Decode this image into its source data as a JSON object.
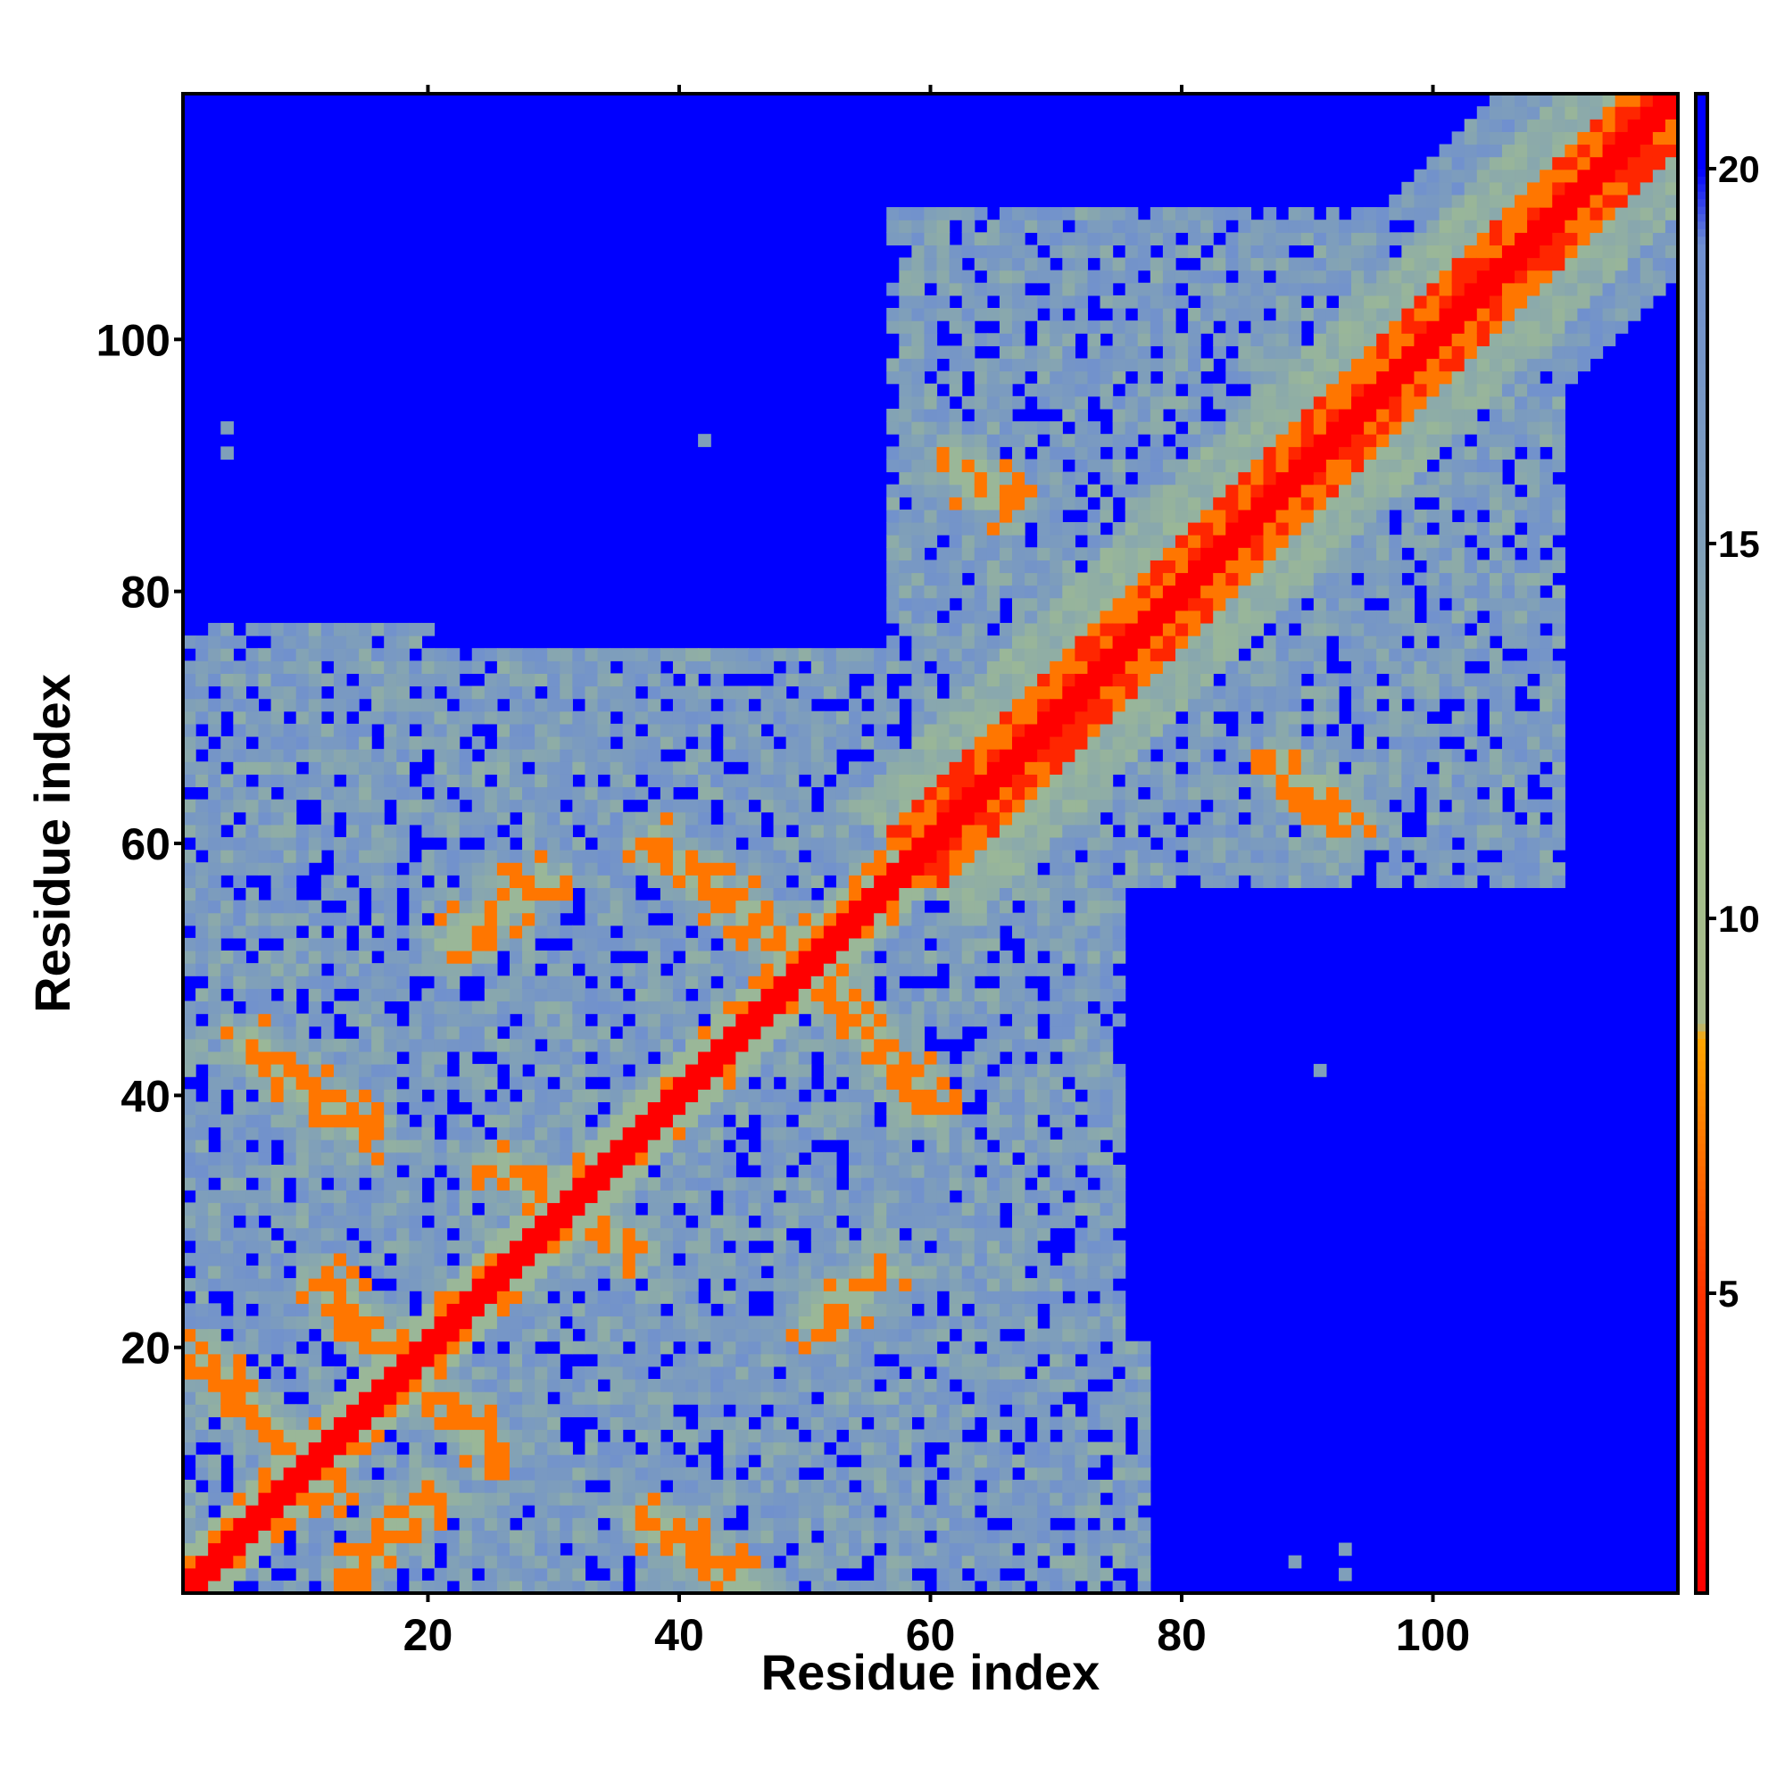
{
  "chart_data": {
    "type": "heatmap",
    "title": "",
    "xlabel": "Residue index",
    "ylabel": "Residue index",
    "n_residues": 119,
    "xlim": [
      0.5,
      119.5
    ],
    "ylim": [
      0.5,
      119.5
    ],
    "x_ticks": [
      20,
      40,
      60,
      80,
      100
    ],
    "y_ticks": [
      20,
      40,
      60,
      80,
      100
    ],
    "x_tick_labels": [
      "20",
      "40",
      "60",
      "80",
      "100"
    ],
    "y_tick_labels": [
      "20",
      "40",
      "60",
      "80",
      "100"
    ],
    "colorbar": {
      "range": [
        1,
        21
      ],
      "ticks": [
        5,
        10,
        15,
        20
      ],
      "tick_labels": [
        "5",
        "10",
        "15",
        "20"
      ],
      "color_stops": [
        {
          "value": 1,
          "color": "#ff0000"
        },
        {
          "value": 5,
          "color": "#ff3300"
        },
        {
          "value": 8.4,
          "color": "#ffa500"
        },
        {
          "value": 8.6,
          "color": "#a8b98a"
        },
        {
          "value": 11,
          "color": "#a3bf8c"
        },
        {
          "value": 15,
          "color": "#7f9fba"
        },
        {
          "value": 19,
          "color": "#6f8fd0"
        },
        {
          "value": 20,
          "color": "#0000ff"
        },
        {
          "value": 21,
          "color": "#0000ff"
        }
      ]
    },
    "background_color": "#0000ff",
    "value_bands": {
      "diagonal": 1,
      "helix_adjacent": 7,
      "contact": 7,
      "near": 12,
      "far": 21
    },
    "secondary_structure_contacts": [
      {
        "i_start": 2,
        "j_start": 19,
        "i_end": 12,
        "j_end": 9,
        "kind": "antiparallel"
      },
      {
        "i_start": 6,
        "j_start": 44,
        "i_end": 15,
        "j_end": 37,
        "kind": "antiparallel"
      },
      {
        "i_start": 12,
        "j_start": 25,
        "i_end": 20,
        "j_end": 16,
        "kind": "antiparallel"
      },
      {
        "i_start": 14,
        "j_start": 2,
        "i_end": 20,
        "j_end": 8,
        "kind": "antiparallel"
      },
      {
        "i_start": 20,
        "j_start": 17,
        "i_end": 25,
        "j_end": 12,
        "kind": "antiparallel"
      },
      {
        "i_start": 26,
        "j_start": 34,
        "i_end": 36,
        "j_end": 28,
        "kind": "antiparallel"
      },
      {
        "i_start": 22,
        "j_start": 52,
        "i_end": 29,
        "j_end": 57,
        "kind": "parallel"
      },
      {
        "i_start": 38,
        "j_start": 60,
        "i_end": 50,
        "j_end": 51,
        "kind": "antiparallel"
      },
      {
        "i_start": 38,
        "j_start": 6,
        "i_end": 45,
        "j_end": 1,
        "kind": "antiparallel"
      },
      {
        "i_start": 51,
        "j_start": 50,
        "i_end": 60,
        "j_end": 39,
        "kind": "antiparallel"
      },
      {
        "i_start": 51,
        "j_start": 22,
        "i_end": 56,
        "j_end": 26,
        "kind": "parallel"
      },
      {
        "i_start": 60,
        "j_start": 65,
        "i_end": 70,
        "j_end": 74,
        "kind": "parallel"
      },
      {
        "i_start": 62,
        "j_start": 90,
        "i_end": 66,
        "j_end": 87,
        "kind": "antiparallel"
      },
      {
        "i_start": 88,
        "j_start": 66,
        "i_end": 93,
        "j_end": 62,
        "kind": "antiparallel"
      }
    ],
    "globular_regions": [
      {
        "i_range": [
          1,
          75
        ],
        "j_range": [
          1,
          75
        ]
      },
      {
        "i_range": [
          57,
          110
        ],
        "j_range": [
          57,
          110
        ]
      },
      {
        "i_range": [
          59,
          73
        ],
        "j_range": [
          84,
          100
        ]
      },
      {
        "i_range": [
          84,
          101
        ],
        "j_range": [
          59,
          73
        ]
      },
      {
        "i_range": [
          60,
          77
        ],
        "j_range": [
          1,
          20
        ]
      },
      {
        "i_range": [
          1,
          20
        ],
        "j_range": [
          60,
          77
        ]
      }
    ],
    "isolated_contacts": [
      {
        "i": 4,
        "j": 91
      },
      {
        "i": 4,
        "j": 93
      },
      {
        "i": 42,
        "j": 92
      },
      {
        "i": 91,
        "j": 42
      },
      {
        "i": 93,
        "j": 4
      },
      {
        "i": 93,
        "j": 2
      },
      {
        "i": 89,
        "j": 3
      }
    ]
  }
}
